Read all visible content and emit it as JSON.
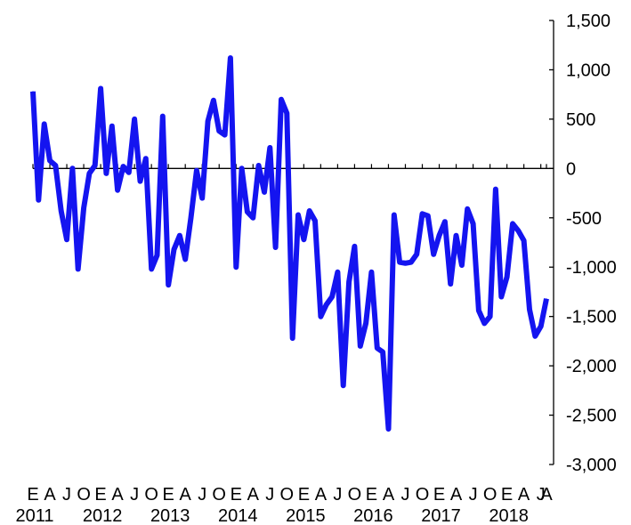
{
  "chart_data": {
    "type": "line",
    "title": "",
    "xlabel": "",
    "ylabel": "",
    "ylim": [
      -3000,
      1500
    ],
    "y_ticks": [
      {
        "value": 1500,
        "label": "1,500"
      },
      {
        "value": 1000,
        "label": "1,000"
      },
      {
        "value": 500,
        "label": "500"
      },
      {
        "value": 0,
        "label": "0"
      },
      {
        "value": -500,
        "label": "-500"
      },
      {
        "value": -1000,
        "label": "-1,000"
      },
      {
        "value": -1500,
        "label": "-1,500"
      },
      {
        "value": -2000,
        "label": "-2,000"
      },
      {
        "value": -2500,
        "label": "-2,500"
      },
      {
        "value": -3000,
        "label": "-3,000"
      }
    ],
    "x_start": "2011-01",
    "x_end": "2018-08",
    "month_labels": [
      {
        "date": "2011-01",
        "label": "E"
      },
      {
        "date": "2011-04",
        "label": "A"
      },
      {
        "date": "2011-07",
        "label": "J"
      },
      {
        "date": "2011-10",
        "label": "O"
      },
      {
        "date": "2012-01",
        "label": "E"
      },
      {
        "date": "2012-04",
        "label": "A"
      },
      {
        "date": "2012-07",
        "label": "J"
      },
      {
        "date": "2012-10",
        "label": "O"
      },
      {
        "date": "2013-01",
        "label": "E"
      },
      {
        "date": "2013-04",
        "label": "A"
      },
      {
        "date": "2013-07",
        "label": "J"
      },
      {
        "date": "2013-10",
        "label": "O"
      },
      {
        "date": "2014-01",
        "label": "E"
      },
      {
        "date": "2014-04",
        "label": "A"
      },
      {
        "date": "2014-07",
        "label": "J"
      },
      {
        "date": "2014-10",
        "label": "O"
      },
      {
        "date": "2015-01",
        "label": "E"
      },
      {
        "date": "2015-04",
        "label": "A"
      },
      {
        "date": "2015-07",
        "label": "J"
      },
      {
        "date": "2015-10",
        "label": "O"
      },
      {
        "date": "2016-01",
        "label": "E"
      },
      {
        "date": "2016-04",
        "label": "A"
      },
      {
        "date": "2016-07",
        "label": "J"
      },
      {
        "date": "2016-10",
        "label": "O"
      },
      {
        "date": "2017-01",
        "label": "E"
      },
      {
        "date": "2017-04",
        "label": "A"
      },
      {
        "date": "2017-07",
        "label": "J"
      },
      {
        "date": "2017-10",
        "label": "O"
      },
      {
        "date": "2018-01",
        "label": "E"
      },
      {
        "date": "2018-04",
        "label": "A"
      },
      {
        "date": "2018-07",
        "label": "J"
      },
      {
        "date": "2018-08",
        "label": "A"
      }
    ],
    "year_labels": [
      {
        "date": "2011-01",
        "label": "2011"
      },
      {
        "date": "2012-01",
        "label": "2012"
      },
      {
        "date": "2013-01",
        "label": "2013"
      },
      {
        "date": "2014-01",
        "label": "2014"
      },
      {
        "date": "2015-01",
        "label": "2015"
      },
      {
        "date": "2016-01",
        "label": "2016"
      },
      {
        "date": "2017-01",
        "label": "2017"
      },
      {
        "date": "2018-01",
        "label": "2018"
      }
    ],
    "grid": false,
    "series": [
      {
        "color": "#1414f0",
        "x": [
          "2011-01",
          "2011-02",
          "2011-03",
          "2011-04",
          "2011-05",
          "2011-06",
          "2011-07",
          "2011-08",
          "2011-09",
          "2011-10",
          "2011-11",
          "2011-12",
          "2012-01",
          "2012-02",
          "2012-03",
          "2012-04",
          "2012-05",
          "2012-06",
          "2012-07",
          "2012-08",
          "2012-09",
          "2012-10",
          "2012-11",
          "2012-12",
          "2013-01",
          "2013-02",
          "2013-03",
          "2013-04",
          "2013-05",
          "2013-06",
          "2013-07",
          "2013-08",
          "2013-09",
          "2013-10",
          "2013-11",
          "2013-12",
          "2014-01",
          "2014-02",
          "2014-03",
          "2014-04",
          "2014-05",
          "2014-06",
          "2014-07",
          "2014-08",
          "2014-09",
          "2014-10",
          "2014-11",
          "2014-12",
          "2015-01",
          "2015-02",
          "2015-03",
          "2015-04",
          "2015-05",
          "2015-06",
          "2015-07",
          "2015-08",
          "2015-09",
          "2015-10",
          "2015-11",
          "2015-12",
          "2016-01",
          "2016-02",
          "2016-03",
          "2016-04",
          "2016-05",
          "2016-06",
          "2016-07",
          "2016-08",
          "2016-09",
          "2016-10",
          "2016-11",
          "2016-12",
          "2017-01",
          "2017-02",
          "2017-03",
          "2017-04",
          "2017-05",
          "2017-06",
          "2017-07",
          "2017-08",
          "2017-09",
          "2017-10",
          "2017-11",
          "2017-12",
          "2018-01",
          "2018-02",
          "2018-03",
          "2018-04",
          "2018-05",
          "2018-06",
          "2018-07",
          "2018-08"
        ],
        "values": [
          780,
          -320,
          450,
          80,
          30,
          -430,
          -720,
          0,
          -1020,
          -400,
          -50,
          30,
          810,
          -50,
          430,
          -220,
          20,
          -40,
          500,
          -130,
          100,
          -1020,
          -880,
          530,
          -1180,
          -820,
          -680,
          -920,
          -500,
          -20,
          -300,
          480,
          690,
          380,
          340,
          1120,
          -1000,
          0,
          -440,
          -500,
          30,
          -240,
          210,
          -800,
          700,
          560,
          -1720,
          -470,
          -720,
          -430,
          -530,
          -1500,
          -1380,
          -1300,
          -1050,
          -2200,
          -1150,
          -790,
          -1800,
          -1570,
          -1050,
          -1820,
          -1860,
          -2640,
          -470,
          -950,
          -960,
          -950,
          -870,
          -460,
          -480,
          -870,
          -680,
          -540,
          -1170,
          -680,
          -980,
          -410,
          -560,
          -1440,
          -1570,
          -1500,
          -210,
          -1300,
          -1100,
          -560,
          -630,
          -730,
          -1430,
          -1700,
          -1600,
          -1320
        ]
      }
    ]
  }
}
